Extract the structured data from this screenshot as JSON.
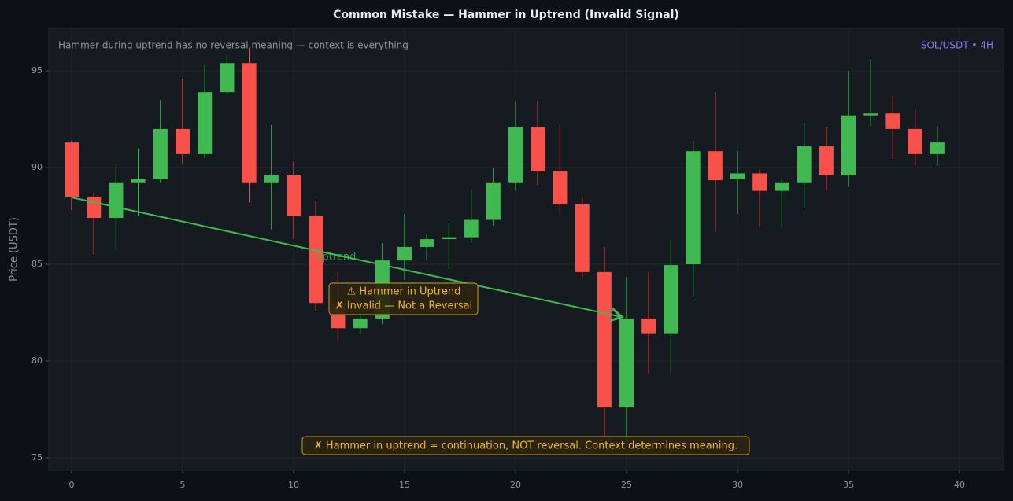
{
  "chart_data": {
    "type": "candlestick",
    "title": "Common Mistake — Hammer in Uptrend (Invalid Signal)",
    "subtitle": "Hammer during uptrend has no reversal meaning — context is everything",
    "symbol_label": "SOL/USDT • 4H",
    "y_label": "Price (USDT)",
    "annotations": {
      "trend_label": "Uptrend",
      "box_line_1": "⚠ Hammer in Uptrend",
      "box_line_2": "✗ Invalid — Not a Reversal",
      "note": "✗ Hammer in uptrend = continuation, NOT reversal. Context determines meaning."
    },
    "x": [
      0,
      1,
      2,
      3,
      4,
      5,
      6,
      7,
      8,
      9,
      10,
      11,
      12,
      13,
      14,
      15,
      16,
      17,
      18,
      19,
      20,
      21,
      22,
      23,
      24,
      25,
      26,
      27,
      28,
      29,
      30,
      31,
      32,
      33,
      34,
      35,
      36,
      37,
      38,
      39
    ],
    "open": [
      91.3,
      88.5,
      87.4,
      89.2,
      89.4,
      92.0,
      90.7,
      93.9,
      95.4,
      89.2,
      89.6,
      87.5,
      83.0,
      81.7,
      82.2,
      85.2,
      85.9,
      86.3,
      86.4,
      87.3,
      89.2,
      92.1,
      89.8,
      88.1,
      84.6,
      77.6,
      82.2,
      81.4,
      85.0,
      90.85,
      89.4,
      89.7,
      88.8,
      89.2,
      91.1,
      89.6,
      92.7,
      92.8,
      92.0,
      90.7
    ],
    "high": [
      91.4,
      88.7,
      90.2,
      91.0,
      93.5,
      94.6,
      95.3,
      95.85,
      96.2,
      92.2,
      90.3,
      88.3,
      84.6,
      82.6,
      86.1,
      87.6,
      86.6,
      87.15,
      88.9,
      90.0,
      93.4,
      93.45,
      92.2,
      88.5,
      85.9,
      84.35,
      84.6,
      86.3,
      91.4,
      93.9,
      90.85,
      89.9,
      89.5,
      92.3,
      92.1,
      95.0,
      95.6,
      93.7,
      93.05,
      92.15
    ],
    "low": [
      87.8,
      85.5,
      85.7,
      87.5,
      89.2,
      90.2,
      90.5,
      93.8,
      88.2,
      86.8,
      86.3,
      82.6,
      81.1,
      81.4,
      81.9,
      84.2,
      85.2,
      84.75,
      86.1,
      87.0,
      88.8,
      89.1,
      87.6,
      84.35,
      76.1,
      76.1,
      79.35,
      79.4,
      83.3,
      86.7,
      87.6,
      86.9,
      86.95,
      87.9,
      88.8,
      89.0,
      92.15,
      90.45,
      90.1,
      90.1
    ],
    "close": [
      88.5,
      87.4,
      89.2,
      89.4,
      92.0,
      90.7,
      93.9,
      95.4,
      89.2,
      89.6,
      87.5,
      83.0,
      81.7,
      82.2,
      85.2,
      85.9,
      86.3,
      86.4,
      87.3,
      89.2,
      92.1,
      89.8,
      88.1,
      84.6,
      77.6,
      82.2,
      81.4,
      84.96,
      90.85,
      89.35,
      89.7,
      88.8,
      89.2,
      91.1,
      89.6,
      92.7,
      92.8,
      92.0,
      90.7,
      91.3
    ],
    "up_color": "#3fb950",
    "down_color": "#f85149",
    "xlim": [
      -1.03,
      41.95
    ],
    "ylim": [
      74.35,
      97.2
    ],
    "xticks": [
      0,
      5,
      10,
      15,
      20,
      25,
      30,
      35,
      40
    ],
    "yticks": [
      75,
      80,
      85,
      90,
      95
    ],
    "grid": true
  }
}
